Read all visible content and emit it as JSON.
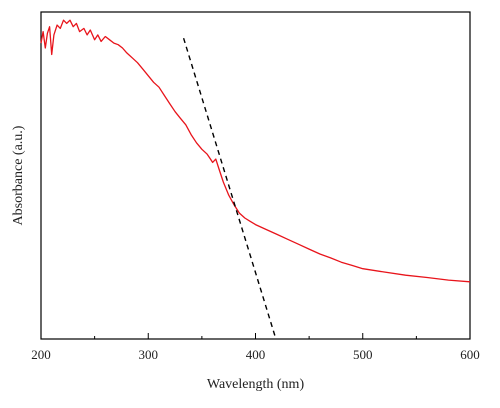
{
  "chart_data": {
    "type": "line",
    "title": "",
    "xlabel": "Wavelength (nm)",
    "ylabel": "Absorbance (a.u.)",
    "xlim": [
      200,
      600
    ],
    "ylim": [
      0,
      1
    ],
    "x_ticks": [
      200,
      300,
      400,
      500,
      600
    ],
    "y_ticks_shown": false,
    "grid": false,
    "legend": "none",
    "series": [
      {
        "color": "#e8141b",
        "style": "solid",
        "points": [
          [
            200,
            0.905
          ],
          [
            202,
            0.94
          ],
          [
            204,
            0.89
          ],
          [
            206,
            0.935
          ],
          [
            208,
            0.955
          ],
          [
            210,
            0.87
          ],
          [
            212,
            0.93
          ],
          [
            215,
            0.96
          ],
          [
            218,
            0.95
          ],
          [
            221,
            0.975
          ],
          [
            224,
            0.965
          ],
          [
            227,
            0.975
          ],
          [
            230,
            0.955
          ],
          [
            233,
            0.965
          ],
          [
            236,
            0.94
          ],
          [
            240,
            0.95
          ],
          [
            243,
            0.93
          ],
          [
            246,
            0.945
          ],
          [
            250,
            0.915
          ],
          [
            253,
            0.93
          ],
          [
            256,
            0.91
          ],
          [
            260,
            0.925
          ],
          [
            264,
            0.915
          ],
          [
            268,
            0.905
          ],
          [
            272,
            0.9
          ],
          [
            276,
            0.89
          ],
          [
            280,
            0.875
          ],
          [
            285,
            0.86
          ],
          [
            290,
            0.845
          ],
          [
            295,
            0.825
          ],
          [
            300,
            0.805
          ],
          [
            305,
            0.785
          ],
          [
            310,
            0.77
          ],
          [
            315,
            0.745
          ],
          [
            320,
            0.72
          ],
          [
            325,
            0.695
          ],
          [
            330,
            0.675
          ],
          [
            335,
            0.655
          ],
          [
            340,
            0.625
          ],
          [
            345,
            0.6
          ],
          [
            350,
            0.58
          ],
          [
            355,
            0.565
          ],
          [
            358,
            0.55
          ],
          [
            360,
            0.54
          ],
          [
            363,
            0.55
          ],
          [
            366,
            0.52
          ],
          [
            370,
            0.48
          ],
          [
            375,
            0.44
          ],
          [
            380,
            0.41
          ],
          [
            385,
            0.385
          ],
          [
            390,
            0.37
          ],
          [
            395,
            0.36
          ],
          [
            400,
            0.35
          ],
          [
            410,
            0.335
          ],
          [
            420,
            0.32
          ],
          [
            430,
            0.305
          ],
          [
            440,
            0.29
          ],
          [
            450,
            0.275
          ],
          [
            460,
            0.26
          ],
          [
            470,
            0.248
          ],
          [
            480,
            0.235
          ],
          [
            490,
            0.225
          ],
          [
            500,
            0.215
          ],
          [
            520,
            0.205
          ],
          [
            540,
            0.195
          ],
          [
            560,
            0.188
          ],
          [
            580,
            0.18
          ],
          [
            600,
            0.175
          ]
        ]
      },
      {
        "color": "#000000",
        "style": "dashed",
        "points": [
          [
            333,
            0.92
          ],
          [
            419,
            0.0
          ]
        ]
      }
    ]
  }
}
